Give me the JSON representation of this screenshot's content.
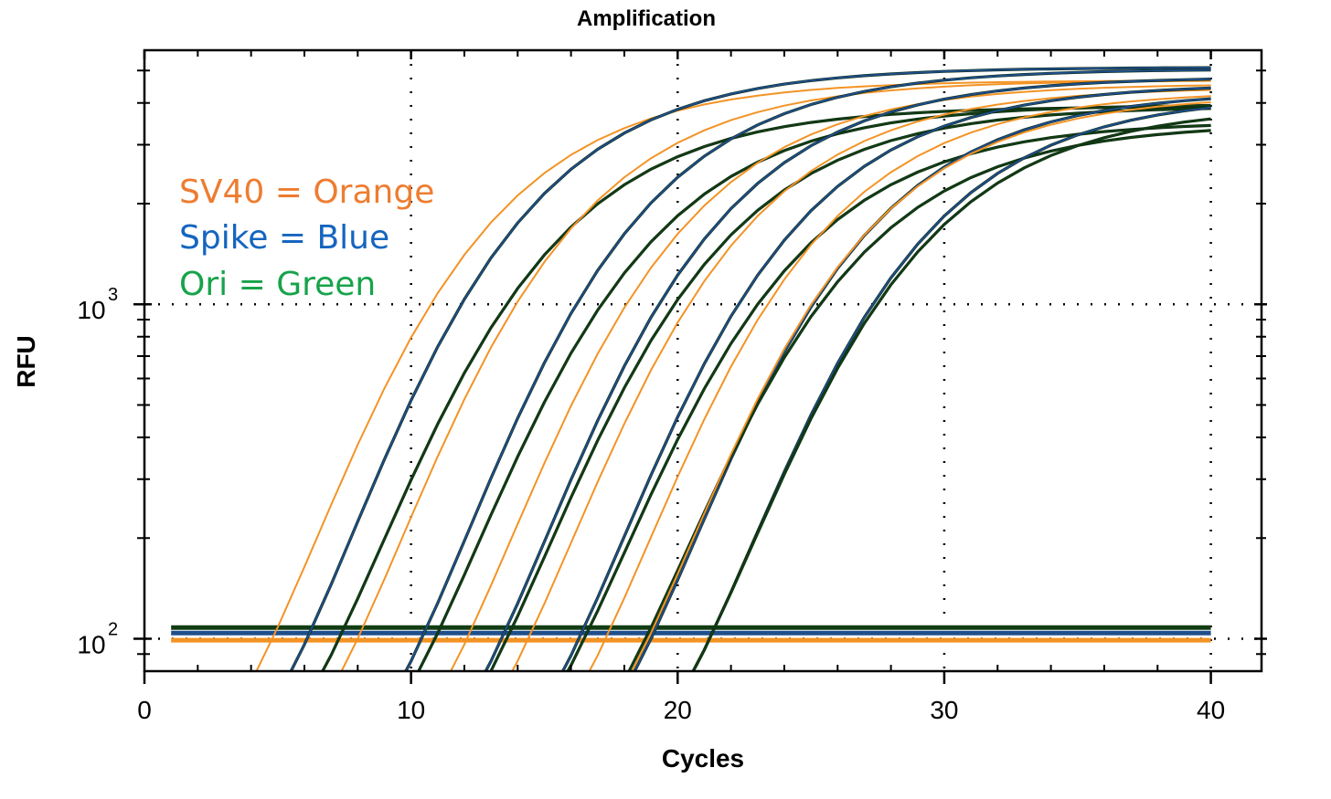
{
  "chart_data": {
    "type": "line",
    "title": "Amplification",
    "xlabel": "Cycles",
    "ylabel": "RFU",
    "xlim": [
      0,
      41.9
    ],
    "ylim": [
      80,
      5750
    ],
    "yscale": "log",
    "grid": "dotted at major ticks",
    "x_ticks": [
      0,
      10,
      20,
      30,
      40
    ],
    "x_tick_labels": [
      "0",
      "10",
      "20",
      "30",
      "40"
    ],
    "y_ticks": [
      100,
      1000
    ],
    "y_tick_labels": [
      {
        "base": "10",
        "exp": "2"
      },
      {
        "base": "10",
        "exp": "3"
      }
    ],
    "legend": {
      "placement": "top-left",
      "entries": [
        {
          "text": "SV40 = Orange",
          "color": "#ed7d31"
        },
        {
          "text": "Spike = Blue",
          "color": "#1565c0"
        },
        {
          "text": "Ori = Green",
          "color": "#17a34a"
        }
      ]
    },
    "line_colors": {
      "SV40": "#f39325",
      "Spike": "#1f4e8c",
      "Ori": "#123d14"
    },
    "cycles": [
      1,
      40
    ],
    "curve_model": "Sigmoid amplification per well: cycle where 100 RFU is crossed and plateau RFU at cycle 40",
    "series": [
      {
        "target": "SV40",
        "cross_100_cycle": 4.8,
        "plateau_rfu": 4300
      },
      {
        "target": "Spike",
        "cross_100_cycle": 6.1,
        "plateau_rfu": 4700
      },
      {
        "target": "Ori",
        "cross_100_cycle": 7.3,
        "plateau_rfu": 3600
      },
      {
        "target": "SV40",
        "cross_100_cycle": 8.0,
        "plateau_rfu": 4300
      },
      {
        "target": "Spike",
        "cross_100_cycle": 10.4,
        "plateau_rfu": 4650
      },
      {
        "target": "Ori",
        "cross_100_cycle": 10.9,
        "plateau_rfu": 3650
      },
      {
        "target": "SV40",
        "cross_100_cycle": 12.1,
        "plateau_rfu": 4200
      },
      {
        "target": "Spike",
        "cross_100_cycle": 13.4,
        "plateau_rfu": 4400
      },
      {
        "target": "Ori",
        "cross_100_cycle": 13.6,
        "plateau_rfu": 3600
      },
      {
        "target": "SV40",
        "cross_100_cycle": 14.4,
        "plateau_rfu": 4100
      },
      {
        "target": "Spike",
        "cross_100_cycle": 16.3,
        "plateau_rfu": 4200
      },
      {
        "target": "Ori",
        "cross_100_cycle": 16.5,
        "plateau_rfu": 3250
      },
      {
        "target": "SV40",
        "cross_100_cycle": 17.3,
        "plateau_rfu": 4000
      },
      {
        "target": "Spike",
        "cross_100_cycle": 19.0,
        "plateau_rfu": 4000
      },
      {
        "target": "Ori",
        "cross_100_cycle": 18.8,
        "plateau_rfu": 3200
      },
      {
        "target": "SV40",
        "cross_100_cycle": 18.9,
        "plateau_rfu": 3900
      },
      {
        "target": "Spike",
        "cross_100_cycle": 21.2,
        "plateau_rfu": 3900
      },
      {
        "target": "Ori",
        "cross_100_cycle": 21.2,
        "plateau_rfu": 3600
      }
    ],
    "thresholds": [
      {
        "target": "Ori",
        "rfu": 108
      },
      {
        "target": "Spike",
        "rfu": 104
      },
      {
        "target": "SV40",
        "rfu": 99
      }
    ]
  }
}
